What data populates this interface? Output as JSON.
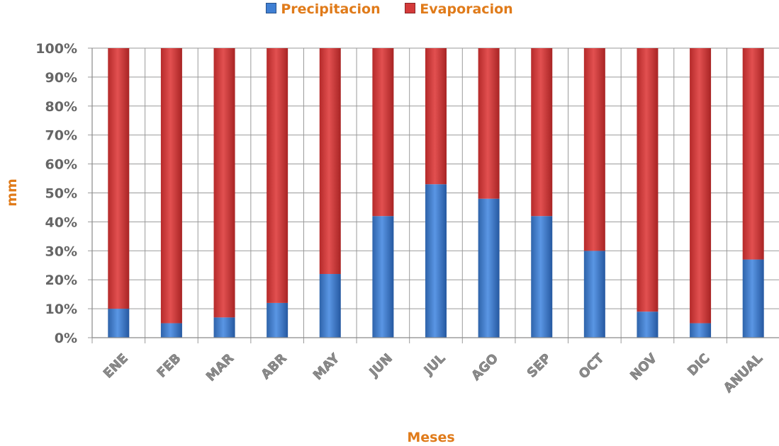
{
  "chart_data": {
    "type": "bar",
    "stacked": "percent",
    "categories": [
      "ENE",
      "FEB",
      "MAR",
      "ABR",
      "MAY",
      "JUN",
      "JUL",
      "AGO",
      "SEP",
      "OCT",
      "NOV",
      "DIC",
      "ANUAL"
    ],
    "series": [
      {
        "name": "Precipitacion",
        "color": "#3f7fd3",
        "values": [
          10,
          5,
          7,
          12,
          22,
          42,
          53,
          48,
          42,
          30,
          9,
          5,
          27
        ]
      },
      {
        "name": "Evaporacion",
        "color": "#d43a3a",
        "values": [
          90,
          95,
          93,
          88,
          78,
          58,
          47,
          52,
          58,
          70,
          91,
          95,
          73
        ]
      }
    ],
    "y_ticks": [
      "0%",
      "10%",
      "20%",
      "30%",
      "40%",
      "50%",
      "60%",
      "70%",
      "80%",
      "90%",
      "100%"
    ],
    "ylim": [
      0,
      100
    ],
    "xlabel": "Meses",
    "ylabel": "mm",
    "legend_position": "top-center",
    "grid": true
  }
}
